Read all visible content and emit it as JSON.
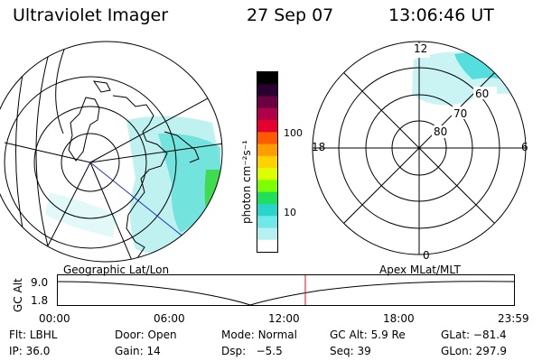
{
  "header": {
    "title": "Ultraviolet Imager",
    "date": "27 Sep 07",
    "time": "13:06:46 UT"
  },
  "geo_panel": {
    "label": "Geographic Lat/Lon"
  },
  "colorbar": {
    "unit_label": "photon cm⁻²s⁻¹",
    "ticks": [
      "100",
      "10"
    ],
    "colors": [
      "#000000",
      "#2a0033",
      "#6a0040",
      "#b0004a",
      "#e60030",
      "#ff5a00",
      "#ff9d00",
      "#ffd200",
      "#dcff00",
      "#7cff00",
      "#1ee05a",
      "#27d6c8",
      "#6ee8e8",
      "#b6f0f0",
      "#ffffff"
    ]
  },
  "polar_panel": {
    "label": "Apex MLat/MLT",
    "mlt_labels": {
      "top": "12",
      "right": "6",
      "bottom": "0",
      "left": "18"
    },
    "lat_labels": [
      "80",
      "70",
      "60"
    ]
  },
  "altitude_plot": {
    "ylabel": "GC Alt",
    "yticks": [
      "9.0",
      "1.8"
    ],
    "xticks": [
      "00:00",
      "06:00",
      "12:00",
      "18:00",
      "23:59"
    ],
    "marker_color": "#ff0000"
  },
  "info": {
    "flt_label": "Flt:",
    "flt_value": "LBHL",
    "ip_label": "IP:",
    "ip_value": "36.0",
    "door_label": "Door:",
    "door_value": "Open",
    "gain_label": "Gain:",
    "gain_value": "14",
    "mode_label": "Mode:",
    "mode_value": "Normal",
    "dsp_label": "Dsp:",
    "dsp_value": "−5.5",
    "gcalt_label": "GC Alt:",
    "gcalt_value": "5.9 Re",
    "seq_label": "Seq:",
    "seq_value": "39",
    "glat_label": "GLat:",
    "glat_value": "−81.4",
    "glon_label": "GLon:",
    "glon_value": "297.9"
  }
}
